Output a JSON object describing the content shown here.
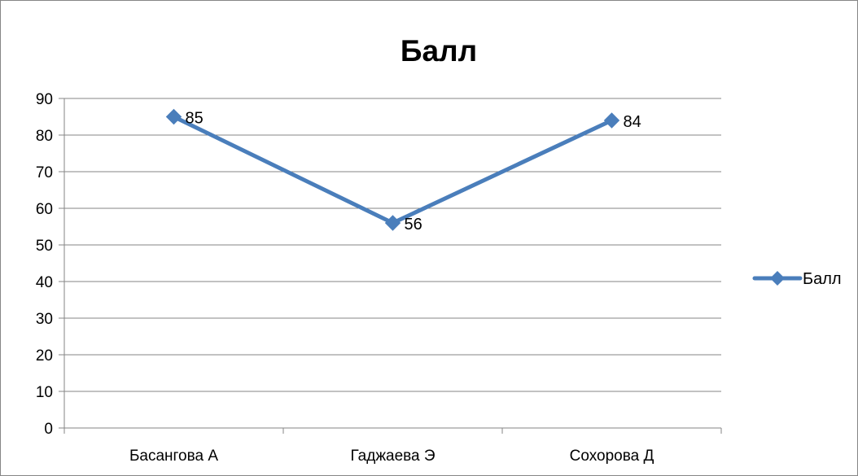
{
  "chart_data": {
    "type": "line",
    "title": "Балл",
    "categories": [
      "Басангова А",
      "Гаджаева Э",
      "Сохорова Д"
    ],
    "series": [
      {
        "name": "Балл",
        "values": [
          85,
          56,
          84
        ],
        "color": "#4a7ebb",
        "marker": "diamond"
      }
    ],
    "data_labels": [
      "85",
      "56",
      "84"
    ],
    "y_ticks": [
      "0",
      "10",
      "20",
      "30",
      "40",
      "50",
      "60",
      "70",
      "80",
      "90"
    ],
    "ylim": [
      0,
      90
    ],
    "y_step": 10,
    "grid": true,
    "legend_position": "right",
    "gridline_color": "#868686"
  }
}
